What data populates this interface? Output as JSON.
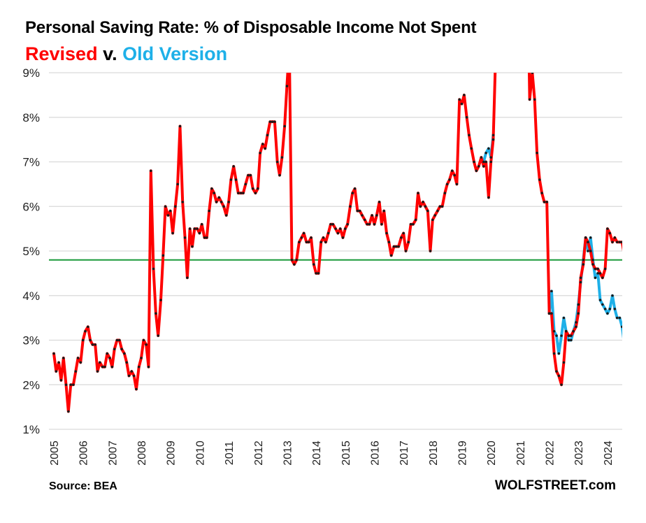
{
  "chart_data": {
    "type": "line",
    "title": "Personal Saving Rate: % of Disposable Income Not Spent",
    "subtitle_parts": [
      {
        "text": "Revised",
        "color": "#ff0000"
      },
      {
        "text": " v. ",
        "color": "#000000"
      },
      {
        "text": "Old Version",
        "color": "#1eb0e8"
      }
    ],
    "xlabel": "",
    "ylabel": "",
    "ylim": [
      1,
      9
    ],
    "xlim": [
      2005,
      2024.5
    ],
    "y_ticks": [
      1,
      2,
      3,
      4,
      5,
      6,
      7,
      8,
      9
    ],
    "y_tick_labels": [
      "1%",
      "2%",
      "3%",
      "4%",
      "5%",
      "6%",
      "7%",
      "8%",
      "9%"
    ],
    "x_ticks": [
      2005,
      2006,
      2007,
      2008,
      2009,
      2010,
      2011,
      2012,
      2013,
      2014,
      2015,
      2016,
      2017,
      2018,
      2019,
      2020,
      2021,
      2022,
      2023,
      2024
    ],
    "x_tick_labels": [
      "2005",
      "2006",
      "2007",
      "2008",
      "2009",
      "2010",
      "2011",
      "2012",
      "2013",
      "2014",
      "2015",
      "2016",
      "2017",
      "2018",
      "2019",
      "2020",
      "2021",
      "2022",
      "2023",
      "2024"
    ],
    "grid": "horizontal",
    "reference_line": {
      "value": 4.8,
      "color": "#1a9a3a",
      "label": ""
    },
    "series": [
      {
        "name": "Old Version",
        "color": "#1eb0e8",
        "points": [
          [
            2019.75,
            7.0
          ],
          [
            2019.83,
            7.2
          ],
          [
            2019.92,
            7.3
          ],
          [
            2020.0,
            7.1
          ],
          [
            2020.08,
            7.6
          ],
          [
            2022.0,
            3.6
          ],
          [
            2022.08,
            4.1
          ],
          [
            2022.17,
            3.2
          ],
          [
            2022.25,
            3.1
          ],
          [
            2022.33,
            2.7
          ],
          [
            2022.42,
            3.1
          ],
          [
            2022.5,
            3.5
          ],
          [
            2022.58,
            3.2
          ],
          [
            2022.67,
            3.0
          ],
          [
            2022.75,
            3.0
          ],
          [
            2022.83,
            3.2
          ],
          [
            2022.92,
            3.4
          ],
          [
            2023.0,
            3.8
          ],
          [
            2023.08,
            4.3
          ],
          [
            2023.17,
            4.8
          ],
          [
            2023.25,
            5.3
          ],
          [
            2023.33,
            5.0
          ],
          [
            2023.42,
            5.3
          ],
          [
            2023.5,
            4.8
          ],
          [
            2023.58,
            4.4
          ],
          [
            2023.67,
            4.5
          ],
          [
            2023.75,
            3.9
          ],
          [
            2023.83,
            3.8
          ],
          [
            2023.92,
            3.7
          ],
          [
            2024.0,
            3.6
          ],
          [
            2024.08,
            3.7
          ],
          [
            2024.17,
            4.0
          ],
          [
            2024.25,
            3.7
          ],
          [
            2024.33,
            3.5
          ],
          [
            2024.42,
            3.5
          ],
          [
            2024.5,
            3.3
          ],
          [
            2024.58,
            2.9
          ]
        ]
      },
      {
        "name": "Revised",
        "color": "#ff0000",
        "points": [
          [
            2005.0,
            2.7
          ],
          [
            2005.08,
            2.3
          ],
          [
            2005.17,
            2.5
          ],
          [
            2005.25,
            2.1
          ],
          [
            2005.33,
            2.6
          ],
          [
            2005.42,
            2.0
          ],
          [
            2005.5,
            1.4
          ],
          [
            2005.58,
            2.0
          ],
          [
            2005.67,
            2.0
          ],
          [
            2005.75,
            2.3
          ],
          [
            2005.83,
            2.6
          ],
          [
            2005.92,
            2.5
          ],
          [
            2006.0,
            3.0
          ],
          [
            2006.08,
            3.2
          ],
          [
            2006.17,
            3.3
          ],
          [
            2006.25,
            3.0
          ],
          [
            2006.33,
            2.9
          ],
          [
            2006.42,
            2.9
          ],
          [
            2006.5,
            2.3
          ],
          [
            2006.58,
            2.5
          ],
          [
            2006.67,
            2.4
          ],
          [
            2006.75,
            2.4
          ],
          [
            2006.83,
            2.7
          ],
          [
            2006.92,
            2.6
          ],
          [
            2007.0,
            2.4
          ],
          [
            2007.08,
            2.8
          ],
          [
            2007.17,
            3.0
          ],
          [
            2007.25,
            3.0
          ],
          [
            2007.33,
            2.8
          ],
          [
            2007.42,
            2.7
          ],
          [
            2007.5,
            2.5
          ],
          [
            2007.58,
            2.2
          ],
          [
            2007.67,
            2.3
          ],
          [
            2007.75,
            2.2
          ],
          [
            2007.83,
            1.9
          ],
          [
            2007.92,
            2.4
          ],
          [
            2008.0,
            2.6
          ],
          [
            2008.08,
            3.0
          ],
          [
            2008.17,
            2.9
          ],
          [
            2008.25,
            2.4
          ],
          [
            2008.33,
            6.8
          ],
          [
            2008.42,
            4.6
          ],
          [
            2008.5,
            3.6
          ],
          [
            2008.58,
            3.1
          ],
          [
            2008.67,
            3.9
          ],
          [
            2008.75,
            4.9
          ],
          [
            2008.83,
            6.0
          ],
          [
            2008.92,
            5.8
          ],
          [
            2009.0,
            5.9
          ],
          [
            2009.08,
            5.4
          ],
          [
            2009.17,
            6.0
          ],
          [
            2009.25,
            6.5
          ],
          [
            2009.33,
            7.8
          ],
          [
            2009.42,
            6.1
          ],
          [
            2009.5,
            5.3
          ],
          [
            2009.58,
            4.4
          ],
          [
            2009.67,
            5.5
          ],
          [
            2009.75,
            5.1
          ],
          [
            2009.83,
            5.5
          ],
          [
            2009.92,
            5.5
          ],
          [
            2010.0,
            5.4
          ],
          [
            2010.08,
            5.6
          ],
          [
            2010.17,
            5.3
          ],
          [
            2010.25,
            5.3
          ],
          [
            2010.33,
            5.9
          ],
          [
            2010.42,
            6.4
          ],
          [
            2010.5,
            6.3
          ],
          [
            2010.58,
            6.1
          ],
          [
            2010.67,
            6.2
          ],
          [
            2010.75,
            6.1
          ],
          [
            2010.83,
            6.0
          ],
          [
            2010.92,
            5.8
          ],
          [
            2011.0,
            6.1
          ],
          [
            2011.08,
            6.6
          ],
          [
            2011.17,
            6.9
          ],
          [
            2011.25,
            6.6
          ],
          [
            2011.33,
            6.3
          ],
          [
            2011.42,
            6.3
          ],
          [
            2011.5,
            6.3
          ],
          [
            2011.58,
            6.5
          ],
          [
            2011.67,
            6.7
          ],
          [
            2011.75,
            6.7
          ],
          [
            2011.83,
            6.4
          ],
          [
            2011.92,
            6.3
          ],
          [
            2012.0,
            6.4
          ],
          [
            2012.08,
            7.2
          ],
          [
            2012.17,
            7.4
          ],
          [
            2012.25,
            7.3
          ],
          [
            2012.33,
            7.6
          ],
          [
            2012.42,
            7.9
          ],
          [
            2012.5,
            7.9
          ],
          [
            2012.58,
            7.9
          ],
          [
            2012.67,
            7.0
          ],
          [
            2012.75,
            6.7
          ],
          [
            2012.83,
            7.1
          ],
          [
            2012.92,
            7.8
          ],
          [
            2013.0,
            8.7
          ],
          [
            2013.08,
            9.6
          ],
          [
            2013.17,
            4.8
          ],
          [
            2013.25,
            4.7
          ],
          [
            2013.33,
            4.8
          ],
          [
            2013.42,
            5.2
          ],
          [
            2013.5,
            5.3
          ],
          [
            2013.58,
            5.4
          ],
          [
            2013.67,
            5.2
          ],
          [
            2013.75,
            5.2
          ],
          [
            2013.83,
            5.3
          ],
          [
            2013.92,
            4.7
          ],
          [
            2014.0,
            4.5
          ],
          [
            2014.08,
            4.5
          ],
          [
            2014.17,
            5.2
          ],
          [
            2014.25,
            5.3
          ],
          [
            2014.33,
            5.2
          ],
          [
            2014.42,
            5.4
          ],
          [
            2014.5,
            5.6
          ],
          [
            2014.58,
            5.6
          ],
          [
            2014.67,
            5.5
          ],
          [
            2014.75,
            5.4
          ],
          [
            2014.83,
            5.5
          ],
          [
            2014.92,
            5.3
          ],
          [
            2015.0,
            5.5
          ],
          [
            2015.08,
            5.6
          ],
          [
            2015.17,
            6.0
          ],
          [
            2015.25,
            6.3
          ],
          [
            2015.33,
            6.4
          ],
          [
            2015.42,
            5.9
          ],
          [
            2015.5,
            5.9
          ],
          [
            2015.58,
            5.8
          ],
          [
            2015.67,
            5.7
          ],
          [
            2015.75,
            5.6
          ],
          [
            2015.83,
            5.6
          ],
          [
            2015.92,
            5.8
          ],
          [
            2016.0,
            5.6
          ],
          [
            2016.08,
            5.8
          ],
          [
            2016.17,
            6.1
          ],
          [
            2016.25,
            5.6
          ],
          [
            2016.33,
            5.9
          ],
          [
            2016.42,
            5.4
          ],
          [
            2016.5,
            5.2
          ],
          [
            2016.58,
            4.9
          ],
          [
            2016.67,
            5.1
          ],
          [
            2016.75,
            5.1
          ],
          [
            2016.83,
            5.1
          ],
          [
            2016.92,
            5.3
          ],
          [
            2017.0,
            5.4
          ],
          [
            2017.08,
            5.0
          ],
          [
            2017.17,
            5.2
          ],
          [
            2017.25,
            5.6
          ],
          [
            2017.33,
            5.6
          ],
          [
            2017.42,
            5.7
          ],
          [
            2017.5,
            6.3
          ],
          [
            2017.58,
            6.0
          ],
          [
            2017.67,
            6.1
          ],
          [
            2017.75,
            6.0
          ],
          [
            2017.83,
            5.9
          ],
          [
            2017.92,
            5.0
          ],
          [
            2018.0,
            5.7
          ],
          [
            2018.08,
            5.8
          ],
          [
            2018.17,
            5.9
          ],
          [
            2018.25,
            6.0
          ],
          [
            2018.33,
            6.0
          ],
          [
            2018.42,
            6.3
          ],
          [
            2018.5,
            6.5
          ],
          [
            2018.58,
            6.6
          ],
          [
            2018.67,
            6.8
          ],
          [
            2018.75,
            6.7
          ],
          [
            2018.83,
            6.5
          ],
          [
            2018.92,
            8.4
          ],
          [
            2019.0,
            8.3
          ],
          [
            2019.08,
            8.5
          ],
          [
            2019.17,
            8.0
          ],
          [
            2019.25,
            7.6
          ],
          [
            2019.33,
            7.3
          ],
          [
            2019.42,
            7.0
          ],
          [
            2019.5,
            6.8
          ],
          [
            2019.58,
            6.9
          ],
          [
            2019.67,
            7.1
          ],
          [
            2019.75,
            6.9
          ],
          [
            2019.83,
            7.0
          ],
          [
            2019.92,
            6.2
          ],
          [
            2020.0,
            7.0
          ],
          [
            2020.08,
            7.5
          ],
          [
            2020.17,
            9.6
          ],
          [
            2021.3,
            9.6
          ],
          [
            2021.33,
            8.4
          ],
          [
            2021.42,
            9.0
          ],
          [
            2021.5,
            8.4
          ],
          [
            2021.58,
            7.2
          ],
          [
            2021.67,
            6.6
          ],
          [
            2021.75,
            6.3
          ],
          [
            2021.83,
            6.1
          ],
          [
            2021.92,
            6.1
          ],
          [
            2022.0,
            3.6
          ],
          [
            2022.08,
            3.6
          ],
          [
            2022.17,
            2.7
          ],
          [
            2022.25,
            2.3
          ],
          [
            2022.33,
            2.2
          ],
          [
            2022.42,
            2.0
          ],
          [
            2022.5,
            2.5
          ],
          [
            2022.58,
            3.2
          ],
          [
            2022.67,
            3.1
          ],
          [
            2022.75,
            3.1
          ],
          [
            2022.83,
            3.2
          ],
          [
            2022.92,
            3.3
          ],
          [
            2023.0,
            3.6
          ],
          [
            2023.08,
            4.4
          ],
          [
            2023.17,
            4.7
          ],
          [
            2023.25,
            5.3
          ],
          [
            2023.33,
            5.2
          ],
          [
            2023.42,
            5.0
          ],
          [
            2023.5,
            4.7
          ],
          [
            2023.58,
            4.6
          ],
          [
            2023.67,
            4.6
          ],
          [
            2023.75,
            4.5
          ],
          [
            2023.83,
            4.4
          ],
          [
            2023.92,
            4.6
          ],
          [
            2024.0,
            5.5
          ],
          [
            2024.08,
            5.4
          ],
          [
            2024.17,
            5.2
          ],
          [
            2024.25,
            5.3
          ],
          [
            2024.33,
            5.2
          ],
          [
            2024.42,
            5.2
          ],
          [
            2024.5,
            5.2
          ],
          [
            2024.58,
            4.9
          ],
          [
            2024.67,
            4.8
          ]
        ]
      }
    ],
    "source": "Source: BEA",
    "brand": "WOLFSTREET.com"
  }
}
